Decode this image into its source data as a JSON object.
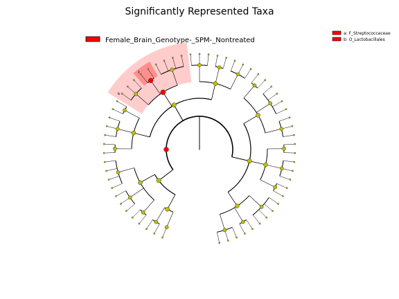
{
  "chart_data": {
    "type": "cladogram",
    "title": "Significantly Represented Taxa",
    "class_legend": {
      "label": "Female_Brain_Genotype-_SPM-_Nontreated",
      "color": "#ff0000"
    },
    "biomarkers": [
      {
        "key": "a",
        "label": "a: F_Streptococcaceae",
        "color": "#ff0000"
      },
      {
        "key": "b",
        "label": "b: O_Lactobacillales",
        "color": "#ff0000"
      }
    ],
    "highlight_labels": [
      "a",
      "b"
    ],
    "colors": {
      "node_default": "#bfbf00",
      "node_enriched": "#ff0000",
      "clade_shade": "#ff0000"
    },
    "ring_count": 6,
    "node_count_outer": 63,
    "enriched_clade": {
      "order": "O_Lactobacillales",
      "family": "F_Streptococcaceae"
    }
  }
}
